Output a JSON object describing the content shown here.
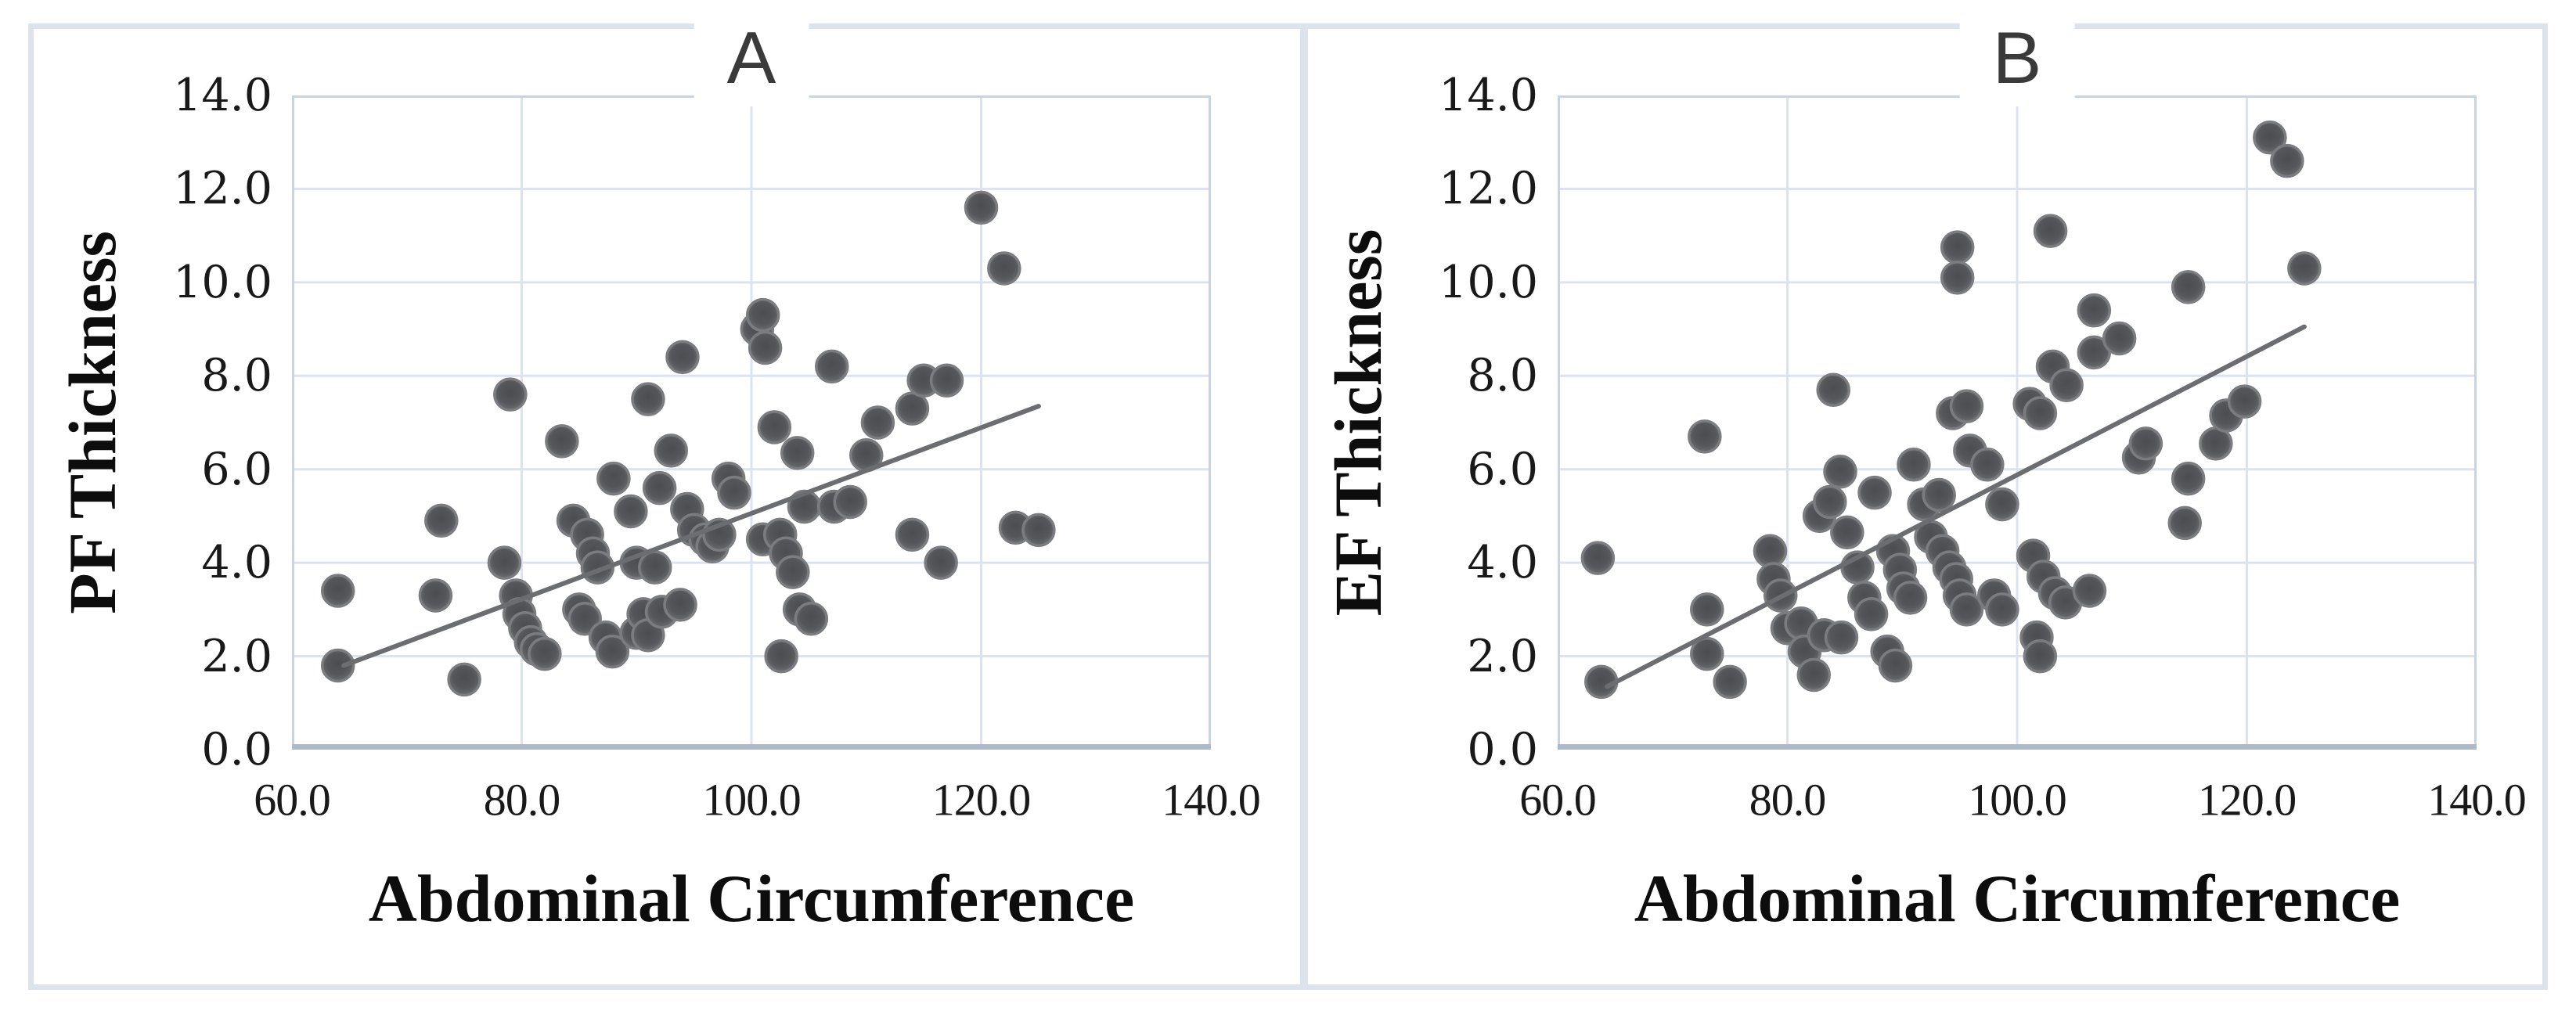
{
  "figure": {
    "background": "#ffffff",
    "frame_color": "#dce3ed",
    "grid_color": "#dce3ee",
    "plot_border_color": "#c9d3e2",
    "axis_line_color": "#aeb9ca",
    "marker_core_color": "#55565a",
    "marker_rim_color": "#7b7c7f",
    "trendline_color": "#6c6d70",
    "tick_text_color": "#191919",
    "panel_letter_color": "#3a3a3a"
  },
  "chart_data": [
    {
      "type": "scatter",
      "title": "A",
      "xlabel": "Abdominal Circumference",
      "ylabel": "PF Thickness",
      "xlim": [
        60,
        140
      ],
      "ylim": [
        0,
        14
      ],
      "x_tick_values": [
        60,
        80,
        100,
        120,
        140
      ],
      "x_tick_labels": [
        "60.0",
        "80.0",
        "100.0",
        "120.0",
        "140.0"
      ],
      "y_tick_values": [
        0,
        2,
        4,
        6,
        8,
        10,
        12,
        14
      ],
      "y_tick_labels": [
        "0.0",
        "2.0",
        "4.0",
        "6.0",
        "8.0",
        "10.0",
        "12.0",
        "14.0"
      ],
      "grid": true,
      "legend": "none",
      "trendline": {
        "x1": 64.5,
        "y1": 1.8,
        "x2": 125.0,
        "y2": 7.35
      },
      "points": [
        [
          64,
          3.4
        ],
        [
          64,
          1.8
        ],
        [
          72.5,
          3.3
        ],
        [
          73,
          4.9
        ],
        [
          75,
          1.5
        ],
        [
          78.5,
          4.0
        ],
        [
          79,
          7.6
        ],
        [
          79.5,
          3.3
        ],
        [
          79.8,
          2.9
        ],
        [
          80.3,
          2.6
        ],
        [
          80.8,
          2.3
        ],
        [
          81.3,
          2.15
        ],
        [
          82,
          2.05
        ],
        [
          83.5,
          6.6
        ],
        [
          84.5,
          4.9
        ],
        [
          85,
          3.0
        ],
        [
          85.5,
          2.8
        ],
        [
          85.7,
          4.6
        ],
        [
          86.2,
          4.2
        ],
        [
          86.6,
          3.9
        ],
        [
          87.3,
          2.4
        ],
        [
          87.9,
          2.1
        ],
        [
          88,
          5.8
        ],
        [
          89.5,
          5.1
        ],
        [
          90,
          4.0
        ],
        [
          90,
          2.5
        ],
        [
          90.6,
          2.9
        ],
        [
          91,
          2.45
        ],
        [
          91,
          7.5
        ],
        [
          91.6,
          3.9
        ],
        [
          92,
          5.6
        ],
        [
          92.2,
          2.95
        ],
        [
          93,
          6.4
        ],
        [
          93.8,
          3.1
        ],
        [
          94,
          8.4
        ],
        [
          94.4,
          5.15
        ],
        [
          95,
          4.7
        ],
        [
          96,
          4.5
        ],
        [
          96.6,
          4.35
        ],
        [
          97.2,
          4.6
        ],
        [
          98,
          5.8
        ],
        [
          98.5,
          5.5
        ],
        [
          100.5,
          9.0
        ],
        [
          101,
          9.3
        ],
        [
          101.2,
          8.6
        ],
        [
          101,
          4.5
        ],
        [
          102,
          6.9
        ],
        [
          102.5,
          4.6
        ],
        [
          102.6,
          2.0
        ],
        [
          103,
          4.2
        ],
        [
          103.6,
          3.8
        ],
        [
          104,
          6.35
        ],
        [
          104.2,
          3.0
        ],
        [
          104.6,
          5.2
        ],
        [
          105.2,
          2.8
        ],
        [
          107,
          8.2
        ],
        [
          107.2,
          5.2
        ],
        [
          108.6,
          5.3
        ],
        [
          110,
          6.3
        ],
        [
          111,
          7.0
        ],
        [
          114,
          7.3
        ],
        [
          114,
          4.6
        ],
        [
          115,
          7.9
        ],
        [
          116.5,
          4.0
        ],
        [
          117,
          7.9
        ],
        [
          120,
          11.6
        ],
        [
          122,
          10.3
        ],
        [
          123,
          4.75
        ],
        [
          125,
          4.7
        ]
      ]
    },
    {
      "type": "scatter",
      "title": "B",
      "xlabel": "Abdominal Circumference",
      "ylabel": "EF Thickness",
      "xlim": [
        60,
        140
      ],
      "ylim": [
        0,
        14
      ],
      "x_tick_values": [
        60,
        80,
        100,
        120,
        140
      ],
      "x_tick_labels": [
        "60.0",
        "80.0",
        "100.0",
        "120.0",
        "140.0"
      ],
      "y_tick_values": [
        0,
        2,
        4,
        6,
        8,
        10,
        12,
        14
      ],
      "y_tick_labels": [
        "0.0",
        "2.0",
        "4.0",
        "6.0",
        "8.0",
        "10.0",
        "12.0",
        "14.0"
      ],
      "grid": true,
      "legend": "none",
      "trendline": {
        "x1": 64.3,
        "y1": 1.35,
        "x2": 125.0,
        "y2": 9.05
      },
      "points": [
        [
          63.5,
          4.1
        ],
        [
          63.8,
          1.45
        ],
        [
          72.8,
          6.7
        ],
        [
          73,
          3.0
        ],
        [
          73,
          2.05
        ],
        [
          75,
          1.45
        ],
        [
          78.5,
          4.25
        ],
        [
          78.8,
          3.65
        ],
        [
          79.4,
          3.3
        ],
        [
          80,
          2.6
        ],
        [
          81.2,
          2.7
        ],
        [
          81.5,
          2.1
        ],
        [
          82.3,
          1.6
        ],
        [
          83.2,
          2.45
        ],
        [
          84.7,
          2.4
        ],
        [
          82.8,
          5.0
        ],
        [
          83.7,
          5.3
        ],
        [
          84,
          7.7
        ],
        [
          84.6,
          5.95
        ],
        [
          85.2,
          4.65
        ],
        [
          86.1,
          3.9
        ],
        [
          86.7,
          3.25
        ],
        [
          87.3,
          2.9
        ],
        [
          87.6,
          5.5
        ],
        [
          88.7,
          2.1
        ],
        [
          89.4,
          1.8
        ],
        [
          89.2,
          4.25
        ],
        [
          89.8,
          3.85
        ],
        [
          90.1,
          3.45
        ],
        [
          90.7,
          3.25
        ],
        [
          91,
          6.1
        ],
        [
          91.9,
          5.25
        ],
        [
          92.5,
          4.55
        ],
        [
          93.2,
          5.45
        ],
        [
          93.5,
          4.25
        ],
        [
          94.1,
          3.9
        ],
        [
          94.7,
          3.65
        ],
        [
          94.8,
          10.75
        ],
        [
          94.8,
          10.1
        ],
        [
          94.4,
          7.2
        ],
        [
          95.6,
          7.35
        ],
        [
          95,
          3.3
        ],
        [
          95.6,
          3.0
        ],
        [
          95.9,
          6.4
        ],
        [
          97.4,
          6.1
        ],
        [
          98,
          3.3
        ],
        [
          98.7,
          3.0
        ],
        [
          98.7,
          5.25
        ],
        [
          101.1,
          7.4
        ],
        [
          102,
          7.2
        ],
        [
          101.4,
          4.15
        ],
        [
          102.3,
          3.7
        ],
        [
          103.3,
          3.35
        ],
        [
          104.2,
          3.15
        ],
        [
          106.3,
          3.4
        ],
        [
          101.7,
          2.4
        ],
        [
          102,
          2.0
        ],
        [
          102.9,
          11.1
        ],
        [
          103.1,
          8.2
        ],
        [
          104.3,
          7.8
        ],
        [
          106.7,
          9.4
        ],
        [
          106.7,
          8.5
        ],
        [
          108.9,
          8.8
        ],
        [
          110.6,
          6.25
        ],
        [
          111.2,
          6.55
        ],
        [
          114.9,
          9.9
        ],
        [
          114.9,
          5.8
        ],
        [
          114.6,
          4.85
        ],
        [
          117.3,
          6.55
        ],
        [
          118.2,
          7.15
        ],
        [
          119.8,
          7.45
        ],
        [
          122,
          13.1
        ],
        [
          123.5,
          12.6
        ],
        [
          125,
          10.3
        ]
      ]
    }
  ]
}
